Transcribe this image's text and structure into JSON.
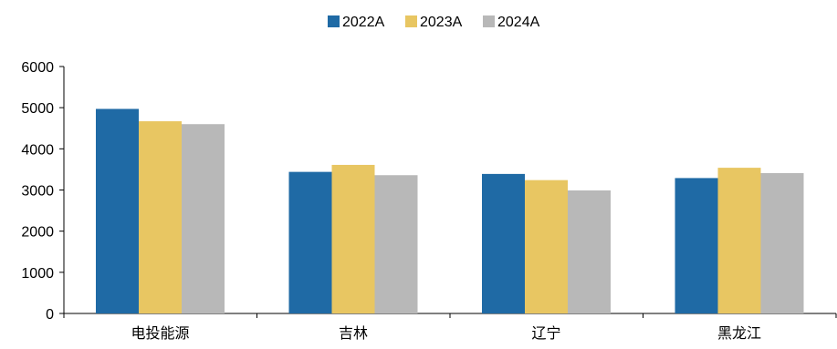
{
  "chart_data": {
    "type": "bar",
    "categories": [
      "电投能源",
      "吉林",
      "辽宁",
      "黑龙江"
    ],
    "series": [
      {
        "name": "2022A",
        "color": "#1f6aa5",
        "values": [
          4970,
          3440,
          3390,
          3290
        ]
      },
      {
        "name": "2023A",
        "color": "#e8c662",
        "values": [
          4670,
          3610,
          3240,
          3540
        ]
      },
      {
        "name": "2024A",
        "color": "#b8b8b8",
        "values": [
          4600,
          3360,
          2990,
          3410
        ]
      }
    ],
    "yticks": [
      "0",
      "1000",
      "2000",
      "3000",
      "4000",
      "5000",
      "6000"
    ],
    "ylim": [
      0,
      6000
    ],
    "title": "",
    "xlabel": "",
    "ylabel": "",
    "legend_position": "top-center",
    "grid": false
  }
}
